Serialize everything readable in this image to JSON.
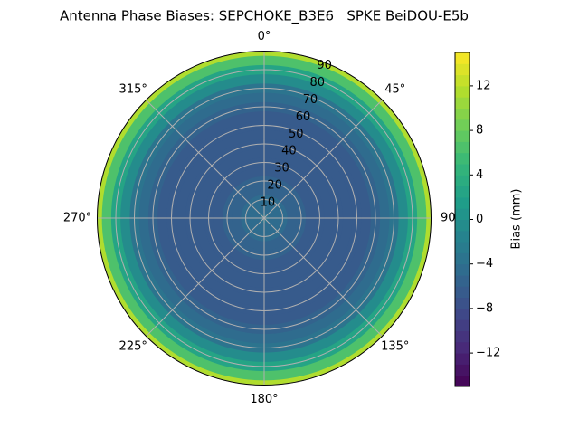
{
  "chart_data": {
    "type": "polar_contour",
    "title": "Antenna Phase Biases: SEPCHOKE_B3E6   SPKE BeiDOU-E5b",
    "colorbar_label": "Bias (mm)",
    "colormap": "viridis",
    "zenith": [
      0,
      5,
      10,
      15,
      20,
      25,
      30,
      35,
      40,
      45,
      50,
      55,
      60,
      65,
      70,
      75,
      80,
      85,
      90
    ],
    "bias": [
      -4,
      -4.5,
      -5,
      -5.5,
      -6,
      -6.5,
      -7,
      -7,
      -7,
      -7,
      -7,
      -6.5,
      -6,
      -5,
      -3.5,
      -1,
      2,
      6,
      11
    ],
    "rlim": [
      0,
      90
    ],
    "rticks": [
      10,
      20,
      30,
      40,
      50,
      60,
      70,
      80,
      90
    ],
    "thetaticks": [
      {
        "value": 0,
        "label": "0°"
      },
      {
        "value": 45,
        "label": "45°"
      },
      {
        "value": 90,
        "label": "90°"
      },
      {
        "value": 135,
        "label": "135°"
      },
      {
        "value": 180,
        "label": "180°"
      },
      {
        "value": 225,
        "label": "225°"
      },
      {
        "value": 270,
        "label": "270°"
      },
      {
        "value": 315,
        "label": "315°"
      }
    ],
    "clim": [
      -15,
      15
    ],
    "level_step": 1,
    "cticks": [
      {
        "value": -12,
        "label": "−12"
      },
      {
        "value": -8,
        "label": "−8"
      },
      {
        "value": -4,
        "label": "−4"
      },
      0,
      4,
      8,
      12
    ],
    "grid": true
  }
}
